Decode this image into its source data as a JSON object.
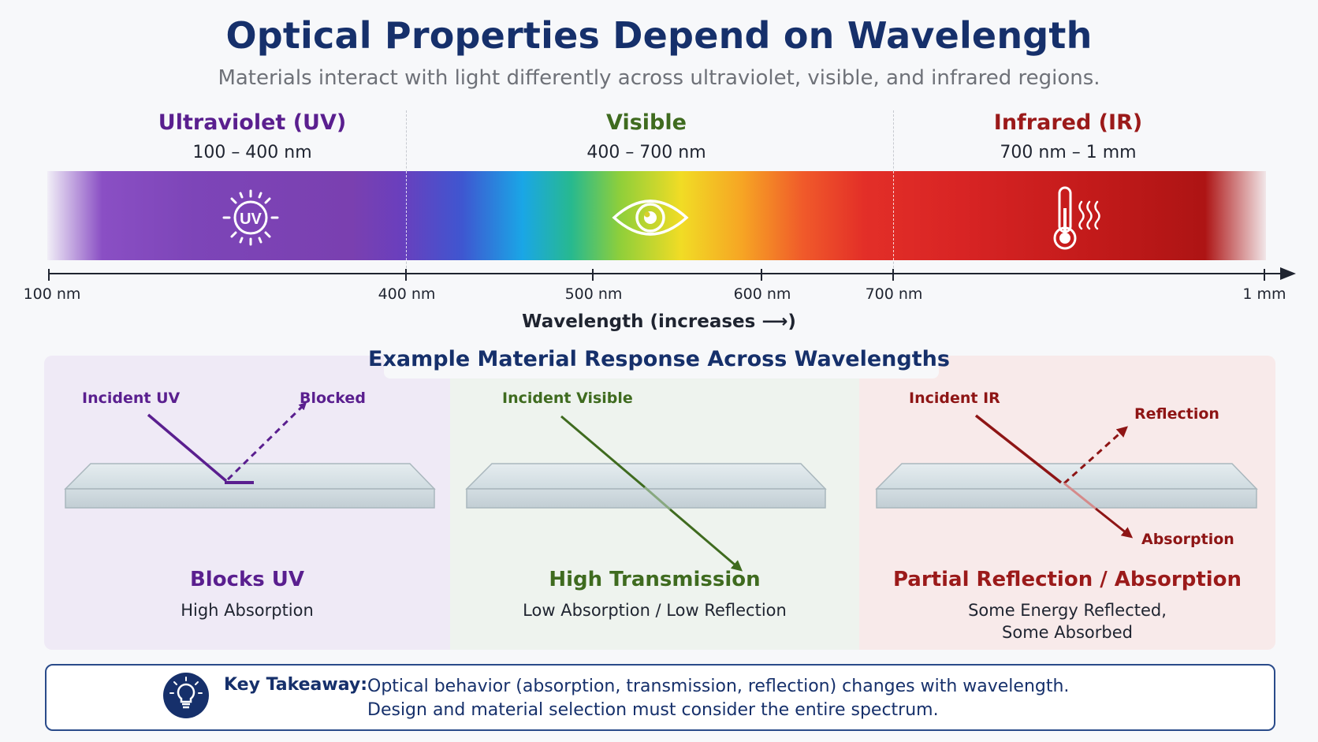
{
  "title": "Optical Properties Depend on Wavelength",
  "subtitle": "Materials interact with light differently across ultraviolet, visible, and infrared regions.",
  "regions": {
    "uv": {
      "title": "Ultraviolet (UV)",
      "range": "100 – 400 nm",
      "icon": "uv-sun-icon",
      "icon_text": "UV",
      "color": "#5a1f8f"
    },
    "visible": {
      "title": "Visible",
      "range": "400 – 700 nm",
      "icon": "eye-icon",
      "color": "#3f6b1f"
    },
    "ir": {
      "title": "Infrared (IR)",
      "range": "700 nm – 1 mm",
      "icon": "thermometer-heat-icon",
      "color": "#9b1a1a"
    }
  },
  "axis": {
    "ticks": [
      "100 nm",
      "400 nm",
      "500 nm",
      "600 nm",
      "700 nm",
      "1 mm"
    ],
    "title": "Wavelength (increases ⟶)"
  },
  "section_title": "Example Material Response Across Wavelengths",
  "panels": {
    "uv": {
      "incident_label": "Incident UV",
      "outcome_label": "Blocked",
      "title": "Blocks UV",
      "description": "High Absorption"
    },
    "visible": {
      "incident_label": "Incident Visible",
      "title": "High Transmission",
      "description": "Low Absorption / Low Reflection"
    },
    "ir": {
      "incident_label": "Incident IR",
      "reflection_label": "Reflection",
      "absorption_label": "Absorption",
      "title": "Partial Reflection / Absorption",
      "description_line1": "Some Energy Reflected,",
      "description_line2": "Some Absorbed"
    }
  },
  "takeaway": {
    "icon": "lightbulb-icon",
    "label": "Key Takeaway:",
    "line1": "Optical behavior (absorption, transmission, reflection) changes with wavelength.",
    "line2": "Design and material selection must consider the entire spectrum."
  }
}
